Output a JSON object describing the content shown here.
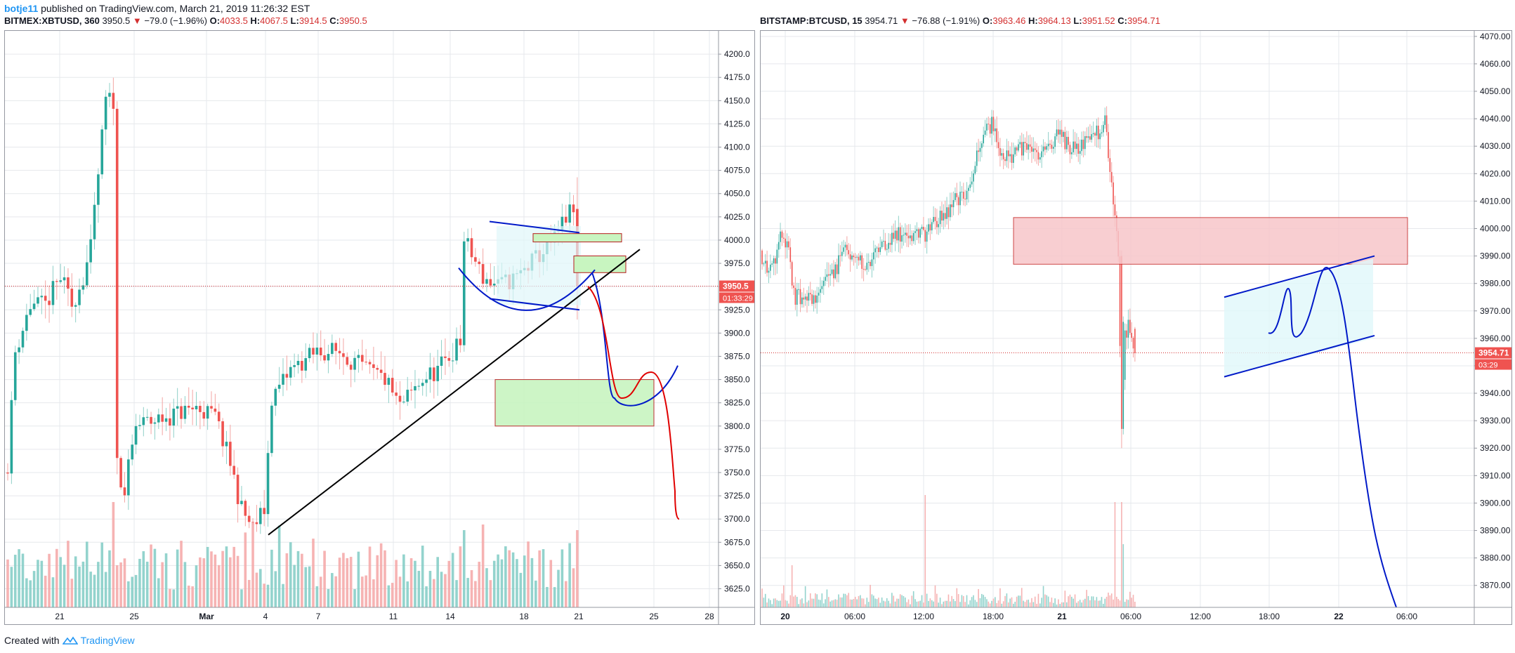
{
  "header": {
    "user": "botje11",
    "published": "published on TradingView.com, March 21, 2019 11:26:32 EST"
  },
  "footer": {
    "created": "Created with",
    "brand": "TradingView",
    "logo_icon": "tradingview-logo-icon"
  },
  "colors": {
    "up": "#26a69a",
    "down": "#ef5350",
    "up_vol": "#80cbc4",
    "down_vol": "#f4a6a6",
    "grid": "#e6e8ec",
    "price_line": "#d32f2f",
    "draw_blue": "#0019c8",
    "draw_red": "#e00000"
  },
  "left": {
    "symbol": "BITMEX:XBTUSD, 360",
    "last": "3950.5",
    "arrow": "▼",
    "change": "−79.0 (−1.96%)",
    "o_label": "O:",
    "o": "4033.5",
    "h_label": "H:",
    "h": "4067.5",
    "l_label": "L:",
    "l": "3914.5",
    "c_label": "C:",
    "c": "3950.5",
    "price_tag": "3950.5",
    "countdown": "01:33:29",
    "y_ticks": [
      "4200.0",
      "4175.0",
      "4150.0",
      "4125.0",
      "4100.0",
      "4075.0",
      "4050.0",
      "4025.0",
      "4000.0",
      "3975.0",
      "3950.0",
      "3925.0",
      "3900.0",
      "3875.0",
      "3850.0",
      "3825.0",
      "3800.0",
      "3775.0",
      "3750.0",
      "3725.0",
      "3700.0",
      "3675.0",
      "3650.0",
      "3625.0"
    ],
    "x_ticks": [
      "21",
      "25",
      "Mar",
      "4",
      "7",
      "11",
      "14",
      "18",
      "21",
      "25",
      "28"
    ]
  },
  "right": {
    "symbol": "BITSTAMP:BTCUSD, 15",
    "last": "3954.71",
    "arrow": "▼",
    "change": "−76.88 (−1.91%)",
    "o_label": "O:",
    "o": "3963.46",
    "h_label": "H:",
    "h": "3964.13",
    "l_label": "L:",
    "l": "3951.52",
    "c_label": "C:",
    "c": "3954.71",
    "price_tag": "3954.71",
    "countdown": "03:29",
    "y_ticks": [
      "4070.00",
      "4060.00",
      "4050.00",
      "4040.00",
      "4030.00",
      "4020.00",
      "4010.00",
      "4000.00",
      "3990.00",
      "3980.00",
      "3970.00",
      "3960.00",
      "3950.00",
      "3940.00",
      "3930.00",
      "3920.00",
      "3910.00",
      "3900.00",
      "3890.00",
      "3880.00",
      "3870.00"
    ],
    "x_ticks": [
      "20",
      "06:00",
      "12:00",
      "18:00",
      "21",
      "06:00",
      "12:00",
      "18:00",
      "22",
      "06:00"
    ]
  },
  "chart_data": [
    {
      "type": "candlestick",
      "title": "BITMEX:XBTUSD, 360",
      "ylim": [
        3605,
        4225
      ],
      "x_ticks": [
        "21",
        "25",
        "Mar",
        "4",
        "7",
        "11",
        "14",
        "18",
        "21",
        "25",
        "28"
      ],
      "last_price": 3950.5,
      "candles_ohlc_approx": "prices from ~3800 (Feb 19) spiking to 4150 (Feb 24), dropping to ~3750, range 3800-3830, low 3690 (Mar 4), ascending to 4030 (Mar 21), last 3950.5"
    },
    {
      "type": "candlestick",
      "title": "BITSTAMP:BTCUSD, 15",
      "ylim": [
        3862,
        4072
      ],
      "x_ticks": [
        "20",
        "06:00",
        "12:00",
        "18:00",
        "21",
        "06:00",
        "12:00",
        "18:00",
        "22",
        "06:00"
      ],
      "last_price": 3954.71,
      "candles_ohlc_approx": "prices from ~3990 (Mar 20) to 3975, rising to 4040 (Mar 21), drop to 3927, last 3954.71"
    }
  ]
}
